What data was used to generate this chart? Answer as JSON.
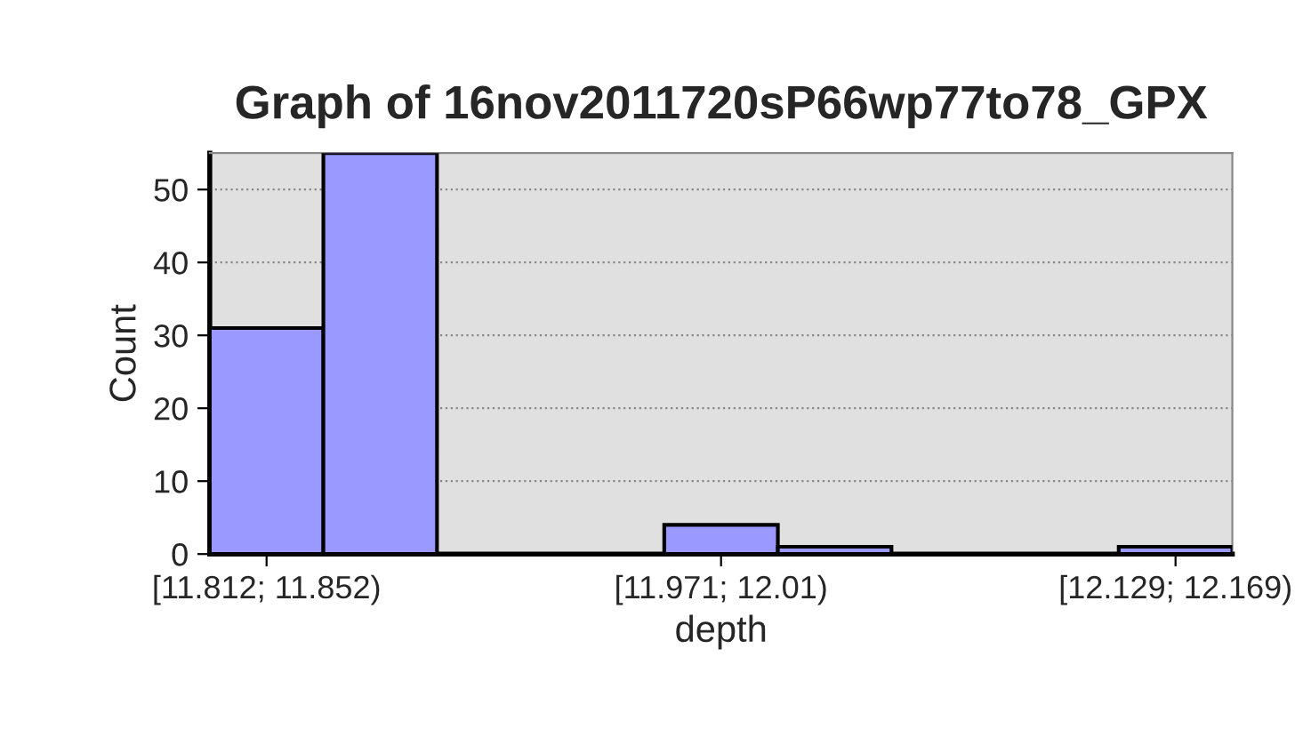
{
  "chart_data": {
    "type": "bar",
    "title": "Graph of 16nov2011720sP66wp77to78_GPX",
    "xlabel": "depth",
    "ylabel": "Count",
    "categories": [
      "[11.812; 11.852)",
      null,
      null,
      null,
      "[11.971; 12.01)",
      null,
      null,
      null,
      "[12.129; 12.169)"
    ],
    "values": [
      31,
      55,
      0,
      0,
      4,
      1,
      0,
      0,
      1
    ],
    "color": "#9999ff",
    "ylim": [
      0,
      55
    ],
    "yticks": [
      0,
      10,
      20,
      30,
      40,
      50
    ],
    "grid": "y"
  }
}
